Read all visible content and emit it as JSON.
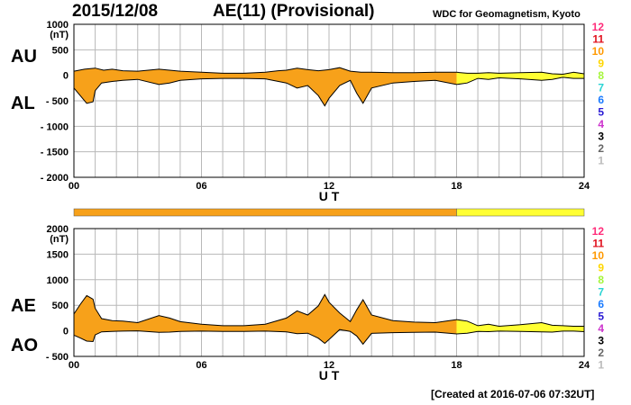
{
  "header": {
    "date": "2015/12/08",
    "title": "AE(11) (Provisional)",
    "source": "WDC for Geomagnetism, Kyoto"
  },
  "footer": {
    "created": "[Created at 2016-07-06 07:32UT]"
  },
  "colors": {
    "final_fill": "#f7a11a",
    "realtime_fill": "#ffff33",
    "grid": "#b8b8b8",
    "trace": "#000000"
  },
  "station_count_legend": [
    {
      "label": "12",
      "color": "#ff2d7a"
    },
    {
      "label": "11",
      "color": "#e0121e"
    },
    {
      "label": "10",
      "color": "#ff9900"
    },
    {
      "label": "9",
      "color": "#ffd700"
    },
    {
      "label": "8",
      "color": "#a5f53b"
    },
    {
      "label": "7",
      "color": "#2ad4d4"
    },
    {
      "label": "6",
      "color": "#1a7bff"
    },
    {
      "label": "5",
      "color": "#2a1ad4"
    },
    {
      "label": "4",
      "color": "#cc33cc"
    },
    {
      "label": "3",
      "color": "#000000"
    },
    {
      "label": "2",
      "color": "#666666"
    },
    {
      "label": "1",
      "color": "#bbbbbb"
    }
  ],
  "chart_data": [
    {
      "type": "area",
      "panel": "AU/AL",
      "labels": {
        "upper": "AU",
        "lower": "AL"
      },
      "ylabel": "(nT)",
      "xlabel": "U T",
      "ylim": [
        -2000,
        1000
      ],
      "yticks": [
        1000,
        500,
        0,
        -500,
        -1000,
        -1500,
        -2000
      ],
      "ytick_labels": [
        "1000",
        "500",
        "0",
        "- 500",
        "- 1000",
        "- 1500",
        "- 2000"
      ],
      "xlim": [
        0,
        24
      ],
      "xticks": [
        0,
        6,
        12,
        18,
        24
      ],
      "xtick_labels": [
        "00",
        "06",
        "12",
        "18",
        "24"
      ],
      "grid": true,
      "realtime_from_hour": 18,
      "series": [
        {
          "name": "AU",
          "x": [
            0,
            0.5,
            1,
            1.4,
            1.8,
            2.3,
            3,
            4,
            4.5,
            5,
            6,
            7,
            8,
            9,
            9.6,
            10,
            10.5,
            11,
            11.5,
            12,
            12.5,
            13,
            13.5,
            14,
            15,
            16,
            17,
            18,
            18.5,
            19,
            19.5,
            20,
            21,
            22,
            22.5,
            23,
            23.5,
            24
          ],
          "values": [
            80,
            120,
            140,
            100,
            120,
            90,
            80,
            120,
            100,
            80,
            60,
            40,
            40,
            60,
            90,
            100,
            140,
            110,
            90,
            110,
            150,
            80,
            60,
            60,
            50,
            50,
            60,
            60,
            40,
            40,
            50,
            40,
            50,
            60,
            30,
            20,
            60,
            30
          ]
        },
        {
          "name": "AL",
          "x": [
            0,
            0.3,
            0.6,
            0.9,
            1,
            1.3,
            1.8,
            2.3,
            3,
            4,
            4.5,
            5,
            6,
            7,
            8,
            9,
            10,
            10.5,
            11,
            11.5,
            11.8,
            12,
            12.5,
            13,
            13.3,
            13.6,
            14,
            15,
            16,
            17,
            18,
            18.5,
            19,
            19.5,
            20,
            21,
            22,
            22.5,
            23,
            23.5,
            24
          ],
          "values": [
            -250,
            -400,
            -550,
            -520,
            -300,
            -150,
            -120,
            -100,
            -80,
            -180,
            -150,
            -100,
            -70,
            -60,
            -60,
            -70,
            -150,
            -250,
            -200,
            -400,
            -600,
            -450,
            -200,
            -100,
            -350,
            -550,
            -250,
            -150,
            -120,
            -100,
            -180,
            -150,
            -60,
            -80,
            -50,
            -70,
            -100,
            -80,
            -40,
            -60,
            -60
          ]
        }
      ]
    },
    {
      "type": "area",
      "panel": "AE/AO",
      "labels": {
        "upper": "AE",
        "lower": "AO"
      },
      "ylabel": "(nT)",
      "xlabel": "U T",
      "ylim": [
        -500,
        2000
      ],
      "yticks": [
        2000,
        1500,
        1000,
        500,
        0,
        -500
      ],
      "ytick_labels": [
        "2000",
        "1500",
        "1000",
        "500",
        "0",
        "- 500"
      ],
      "xlim": [
        0,
        24
      ],
      "xticks": [
        0,
        6,
        12,
        18,
        24
      ],
      "xtick_labels": [
        "00",
        "06",
        "12",
        "18",
        "24"
      ],
      "grid": true,
      "realtime_from_hour": 18,
      "series": [
        {
          "name": "AE",
          "x": [
            0,
            0.3,
            0.6,
            0.9,
            1,
            1.3,
            1.8,
            2.3,
            3,
            4,
            4.5,
            5,
            6,
            7,
            8,
            9,
            10,
            10.5,
            11,
            11.5,
            11.8,
            12,
            12.5,
            13,
            13.3,
            13.6,
            14,
            15,
            16,
            17,
            18,
            18.5,
            19,
            19.5,
            20,
            21,
            22,
            22.5,
            23,
            23.5,
            24
          ],
          "values": [
            330,
            520,
            690,
            620,
            440,
            240,
            200,
            190,
            160,
            300,
            250,
            180,
            130,
            100,
            100,
            130,
            250,
            390,
            310,
            490,
            710,
            560,
            350,
            180,
            410,
            610,
            310,
            200,
            170,
            160,
            220,
            190,
            100,
            130,
            90,
            120,
            160,
            110,
            100,
            90,
            90
          ]
        },
        {
          "name": "AO",
          "x": [
            0,
            0.3,
            0.6,
            0.9,
            1,
            1.3,
            1.8,
            2.3,
            3,
            4,
            4.5,
            5,
            6,
            7,
            8,
            9,
            10,
            10.5,
            11,
            11.5,
            11.8,
            12,
            12.5,
            13,
            13.3,
            13.6,
            14,
            15,
            16,
            17,
            18,
            18.5,
            19,
            19.5,
            20,
            21,
            22,
            22.5,
            23,
            23.5,
            24
          ],
          "values": [
            -85,
            -140,
            -200,
            -210,
            -80,
            -20,
            -10,
            -5,
            0,
            -30,
            -25,
            -10,
            -5,
            -10,
            -10,
            -5,
            -20,
            -55,
            -45,
            -145,
            -245,
            -170,
            25,
            -10,
            -100,
            -260,
            -50,
            -35,
            -30,
            -25,
            -60,
            -45,
            -10,
            -15,
            -5,
            -10,
            -20,
            -25,
            -5,
            -5,
            -15
          ]
        }
      ]
    }
  ]
}
